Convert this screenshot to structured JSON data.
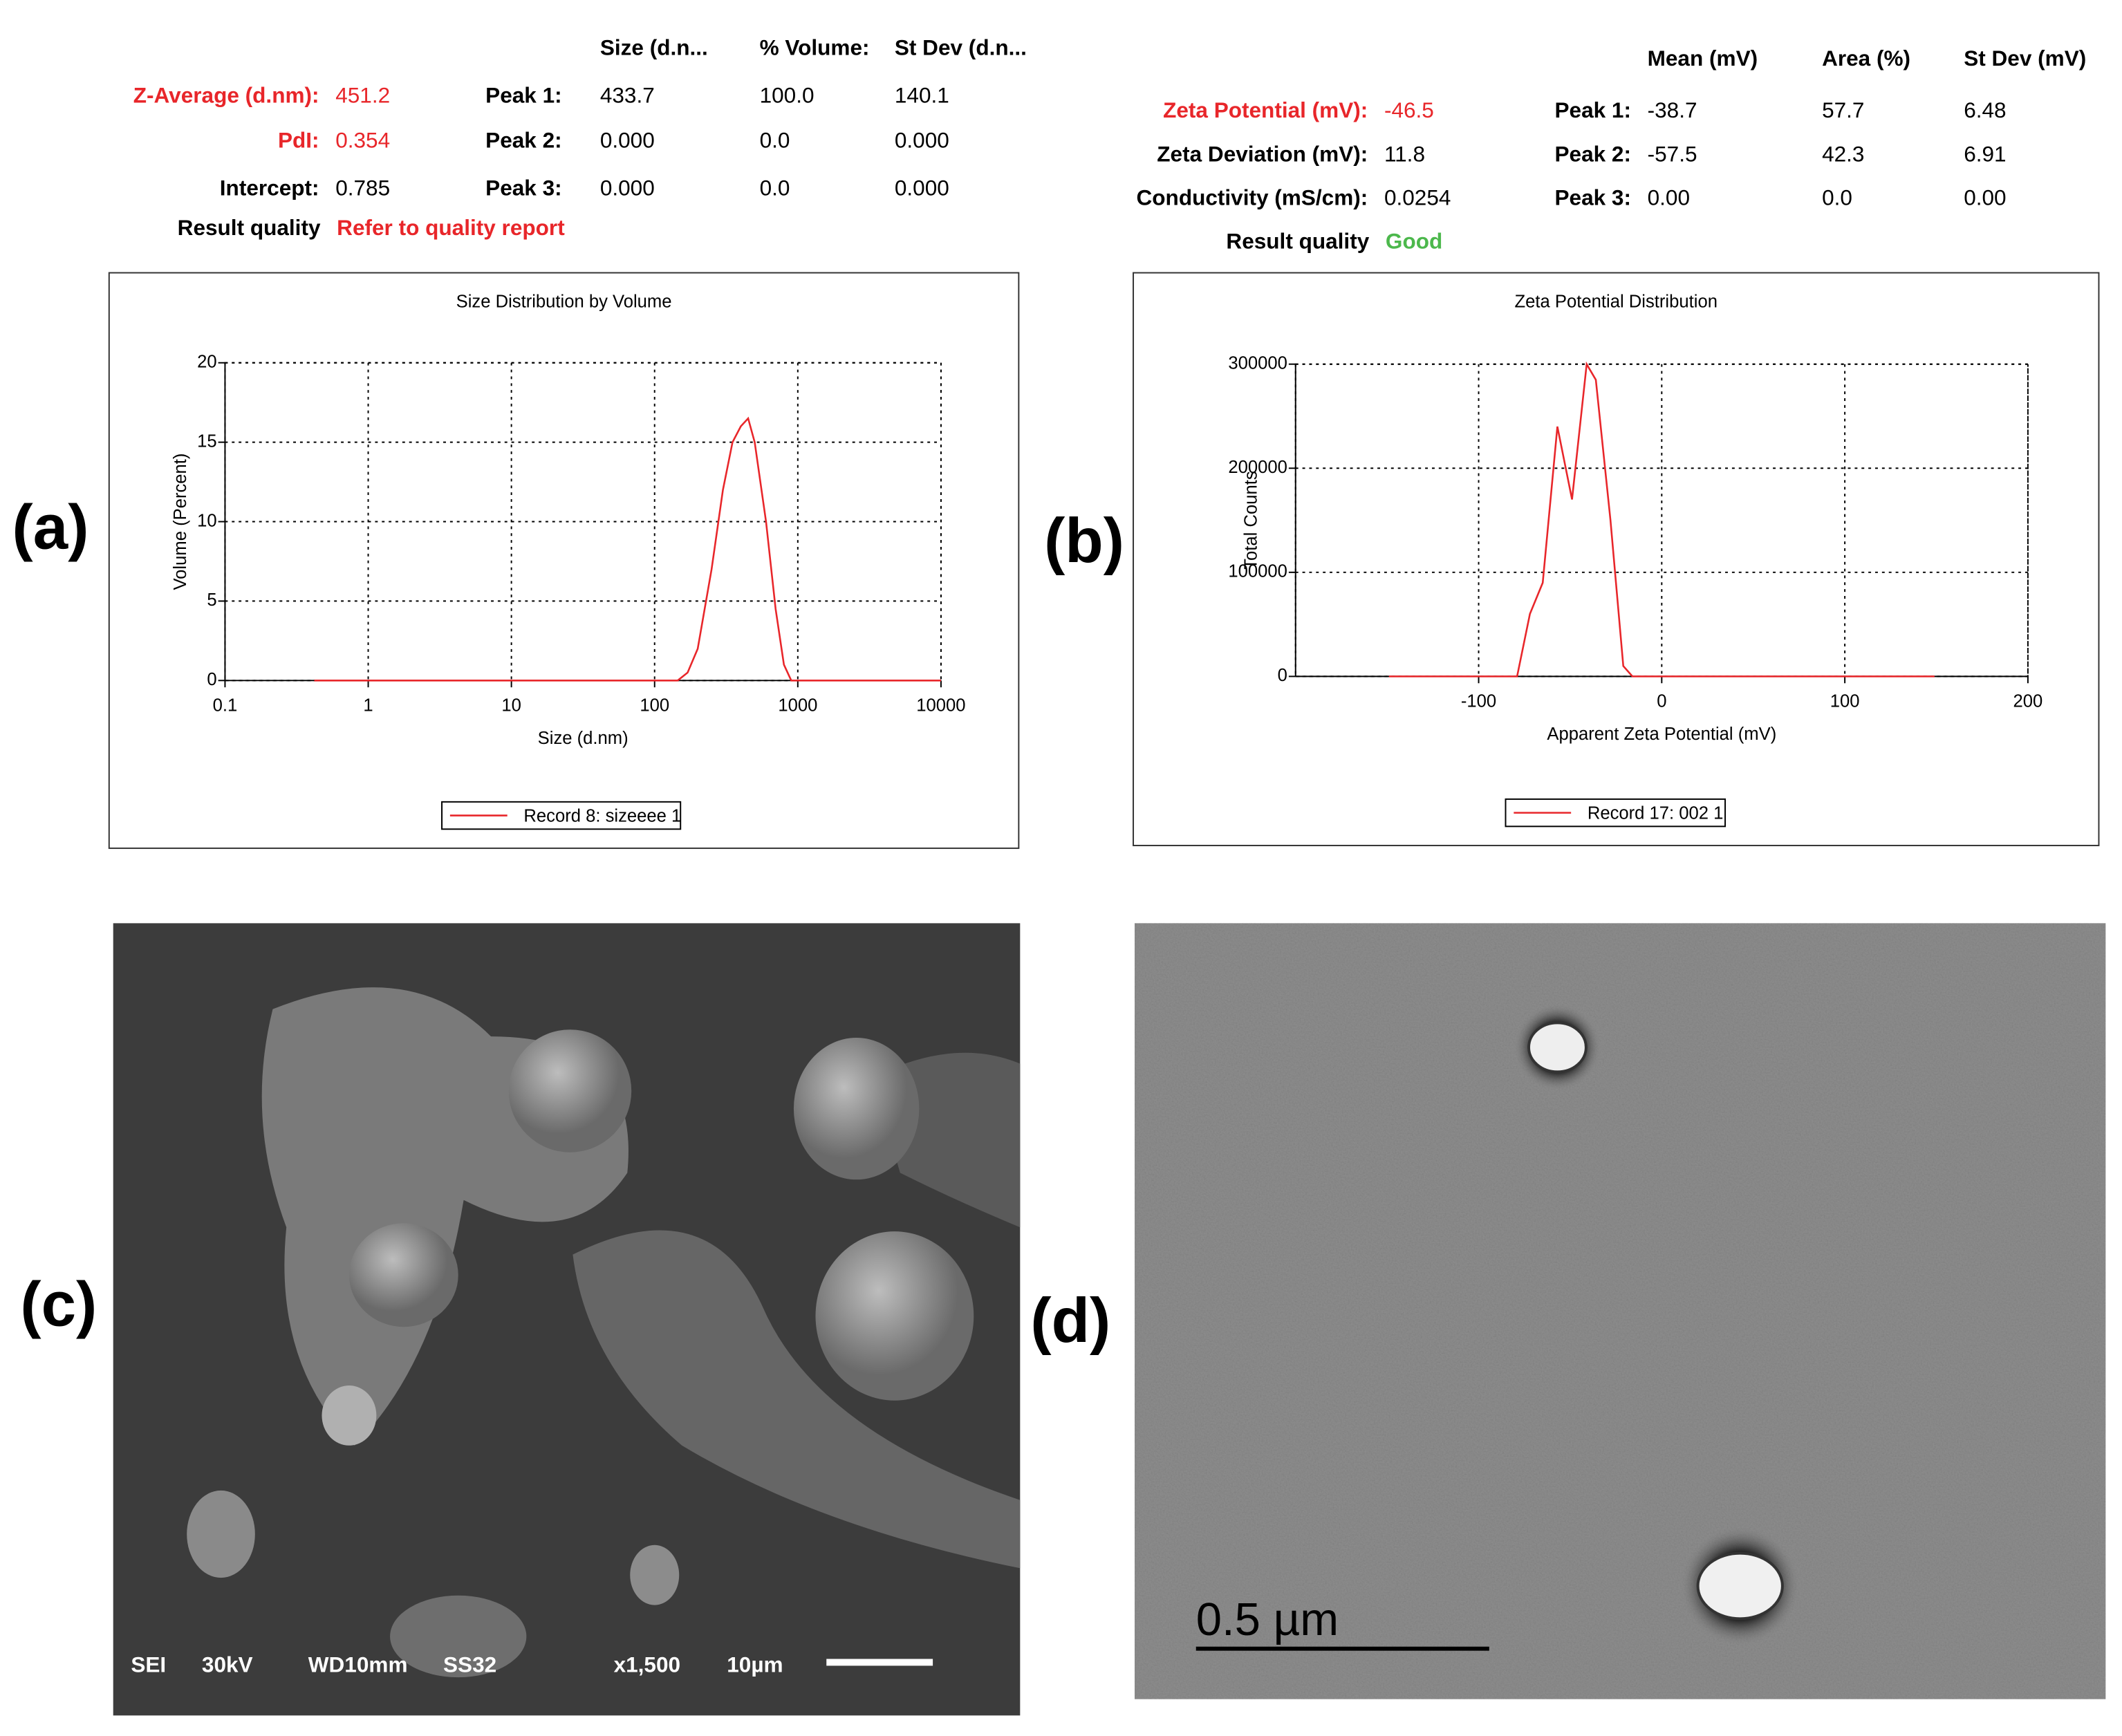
{
  "panel_labels": [
    "(a)",
    "(b)",
    "(c)",
    "(d)"
  ],
  "size_report": {
    "columns": [
      "Size (d.n...",
      "% Volume:",
      "St Dev (d.n..."
    ],
    "summary": [
      {
        "label": "Z-Average (d.nm):",
        "value": "451.2"
      },
      {
        "label": "PdI:",
        "value": "0.354"
      },
      {
        "label": "Intercept:",
        "value": "0.785"
      }
    ],
    "peaks": [
      {
        "label": "Peak 1:",
        "values": [
          "433.7",
          "100.0",
          "140.1"
        ]
      },
      {
        "label": "Peak 2:",
        "values": [
          "0.000",
          "0.0",
          "0.000"
        ]
      },
      {
        "label": "Peak 3:",
        "values": [
          "0.000",
          "0.0",
          "0.000"
        ]
      }
    ],
    "result_quality": {
      "label": "Result quality",
      "value": "Refer to quality report"
    }
  },
  "zeta_report": {
    "columns": [
      "Mean (mV)",
      "Area (%)",
      "St Dev (mV)"
    ],
    "summary": [
      {
        "label": "Zeta Potential (mV):",
        "value": "-46.5"
      },
      {
        "label": "Zeta Deviation (mV):",
        "value": "11.8"
      },
      {
        "label": "Conductivity (mS/cm):",
        "value": "0.0254"
      }
    ],
    "peaks": [
      {
        "label": "Peak 1:",
        "values": [
          "-38.7",
          "57.7",
          "6.48"
        ]
      },
      {
        "label": "Peak 2:",
        "values": [
          "-57.5",
          "42.3",
          "6.91"
        ]
      },
      {
        "label": "Peak 3:",
        "values": [
          "0.00",
          "0.0",
          "0.00"
        ]
      }
    ],
    "result_quality": {
      "label": "Result quality",
      "value": "Good"
    }
  },
  "chart_data": [
    {
      "type": "line",
      "title": "Size Distribution by Volume",
      "x_label": "Size (d.nm)",
      "y_label": "Volume (Percent)",
      "x_scale": "log",
      "xlim": [
        0.1,
        10000
      ],
      "xticks": [
        0.1,
        1,
        10,
        100,
        1000,
        10000
      ],
      "ylim": [
        0,
        20
      ],
      "yticks": [
        0,
        5,
        10,
        15,
        20
      ],
      "grid": true,
      "legend": "bottom",
      "x": [
        0.42,
        145,
        170,
        200,
        250,
        300,
        350,
        400,
        450,
        500,
        600,
        700,
        800,
        900,
        10000
      ],
      "series": [
        {
          "name": "Record 8: sizeeee  1",
          "color": "#e8262a",
          "values": [
            0,
            0,
            0.5,
            2,
            7,
            12,
            15,
            16,
            16.5,
            15,
            10,
            4.5,
            1,
            0,
            0
          ]
        }
      ]
    },
    {
      "type": "line",
      "title": "Zeta Potential Distribution",
      "x_label": "Apparent Zeta Potential (mV)",
      "y_label": "Total Counts",
      "x_scale": "linear",
      "xlim": [
        -200,
        200
      ],
      "xticks": [
        -100,
        0,
        100,
        200
      ],
      "ylim": [
        0,
        300000
      ],
      "yticks": [
        0,
        100000,
        200000,
        300000
      ],
      "grid": true,
      "legend": "bottom",
      "x": [
        -149,
        -79,
        -72,
        -65,
        -57,
        -49,
        -41,
        -36,
        -28,
        -21,
        -16,
        149
      ],
      "series": [
        {
          "name": "Record 17: 002 1",
          "color": "#e8262a",
          "values": [
            0,
            0,
            60000,
            90000,
            240000,
            170000,
            300000,
            285000,
            150000,
            10000,
            0,
            0
          ]
        }
      ]
    }
  ],
  "sem_image": {
    "labels": [
      "SEI",
      "30kV",
      "WD10mm",
      "SS32",
      "x1,500",
      "10µm"
    ]
  },
  "tem_image": {
    "scale_bar": "0.5 µm"
  }
}
